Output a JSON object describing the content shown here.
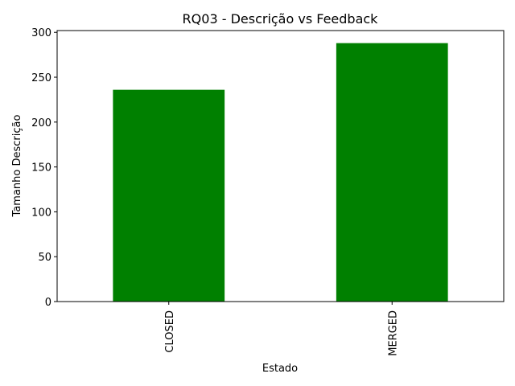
{
  "chart_data": {
    "type": "bar",
    "title": "RQ03 - Descrição vs Feedback",
    "xlabel": "Estado",
    "ylabel": "Tamanho Descrição",
    "categories": [
      "CLOSED",
      "MERGED"
    ],
    "series": [
      {
        "values": [
          236,
          288
        ],
        "color": "#008000"
      }
    ],
    "ylim": [
      0,
      302
    ],
    "yticks": [
      0,
      50,
      100,
      150,
      200,
      250,
      300
    ],
    "grid": false,
    "legend": "none"
  }
}
